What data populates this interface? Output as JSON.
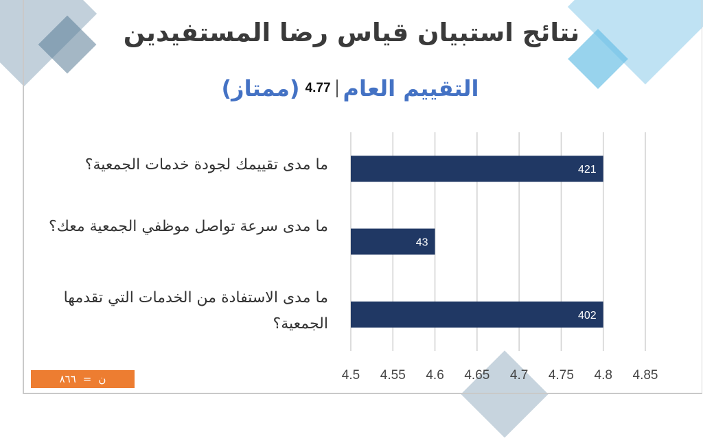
{
  "header": {
    "title": "نتائج استبيان قياس رضا المستفيدين",
    "overall_label": "التقييم العام",
    "overall_score": "4.77",
    "overall_grade": "(ممتاز)"
  },
  "footer": {
    "n_label": "ن",
    "n_equals": "=",
    "n_value": "٨٦٦"
  },
  "colors": {
    "bar": "#203864",
    "accent_blue": "#4472c4",
    "badge": "#ed7d31"
  },
  "chart_data": {
    "type": "bar",
    "orientation": "horizontal",
    "categories": [
      "ما مدى تقييمك لجودة خدمات الجمعية؟",
      "ما مدى سرعة تواصل موظفي الجمعية معك؟",
      "ما مدى الاستفادة من الخدمات التي تقدمها الجمعية؟"
    ],
    "values": [
      4.8,
      4.6,
      4.8
    ],
    "data_labels": [
      "421",
      "43",
      "402"
    ],
    "xlim": [
      4.5,
      4.85
    ],
    "x_ticks": [
      "4.5",
      "4.55",
      "4.6",
      "4.65",
      "4.7",
      "4.75",
      "4.8",
      "4.85"
    ],
    "grid": true,
    "legend": "none"
  }
}
